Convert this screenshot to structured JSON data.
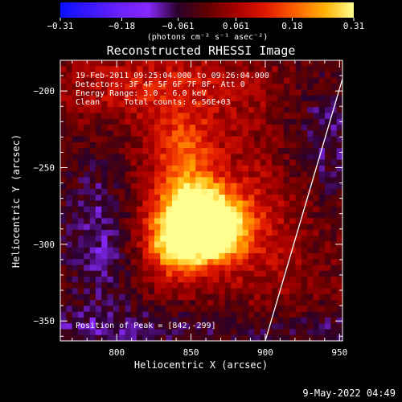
{
  "chart_data": {
    "type": "heatmap",
    "title": "Reconstructed RHESSI Image",
    "xlabel": "Heliocentric X (arcsec)",
    "ylabel": "Heliocentric Y (arcsec)",
    "xlim": [
      762,
      952
    ],
    "ylim": [
      -363,
      -180
    ],
    "x_ticks": [
      800,
      850,
      900,
      950
    ],
    "y_ticks": [
      -200,
      -250,
      -300,
      -350
    ],
    "colorbar": {
      "unit": "(photons cm⁻² s⁻¹ asec⁻²)",
      "range": [
        -0.31,
        0.31
      ],
      "tick_values": [
        -0.31,
        -0.18,
        -0.061,
        0.061,
        0.18,
        0.31
      ],
      "tick_labels": [
        "−0.31",
        "−0.18",
        "−0.061",
        "0.061",
        "0.18",
        "0.31"
      ]
    },
    "annotations": [
      "19-Feb-2011 09:25:04.000 to 09:26:04.000",
      "Detectors: 3F 4F 5F 6F 7F 8F, Att 0",
      "Energy Range: 3.0 - 6.0 keV",
      "Clean     Total counts: 6.56E+03"
    ],
    "peak_label": "Position of Peak = [842,-299]",
    "peak": [
      842,
      -299
    ],
    "emission_sources": [
      {
        "x": 870,
        "y": -290,
        "peak": 0.3
      },
      {
        "x": 842,
        "y": -299,
        "peak": 0.31
      },
      {
        "x": 850,
        "y": -275,
        "peak": 0.24
      },
      {
        "x": 845,
        "y": -235,
        "peak": 0.12
      }
    ],
    "limb_x_at_ylim": [
      900,
      952
    ],
    "timestamp": "9-May-2022 04:49"
  },
  "colors": {
    "background": "#000000",
    "text": "#ffffff",
    "colormap": [
      "#0a10ff",
      "#3a18ff",
      "#6a20ff",
      "#8828ff",
      "#2a002a",
      "#600000",
      "#a80000",
      "#e01800",
      "#ff6000",
      "#ffb000",
      "#ffff90"
    ]
  }
}
